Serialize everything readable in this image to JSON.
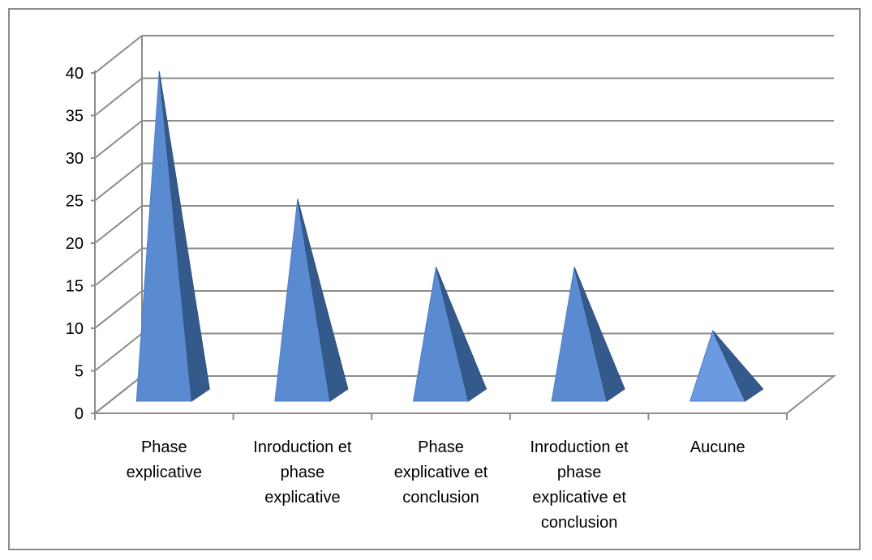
{
  "chart_data": {
    "type": "bar",
    "style": "3d-pyramid",
    "categories": [
      [
        "Phase",
        "explicative"
      ],
      [
        "Inroduction et",
        "phase",
        "explicative"
      ],
      [
        "Phase",
        "explicative et",
        "conclusion"
      ],
      [
        "Inroduction et",
        "phase",
        "explicative et",
        "conclusion"
      ],
      [
        "Aucune"
      ]
    ],
    "values": [
      40,
      25,
      17,
      17,
      9.5
    ],
    "yticks": [
      0,
      5,
      10,
      15,
      20,
      25,
      30,
      35,
      40
    ],
    "ylim": [
      0,
      40
    ],
    "grid": true,
    "legend": "none",
    "colors": {
      "face": "#5a8ad0",
      "face_light": "#6b9ae0",
      "side": "#345a8c",
      "grid": "#8c8c8c",
      "frame": "#8c8c8c"
    }
  }
}
